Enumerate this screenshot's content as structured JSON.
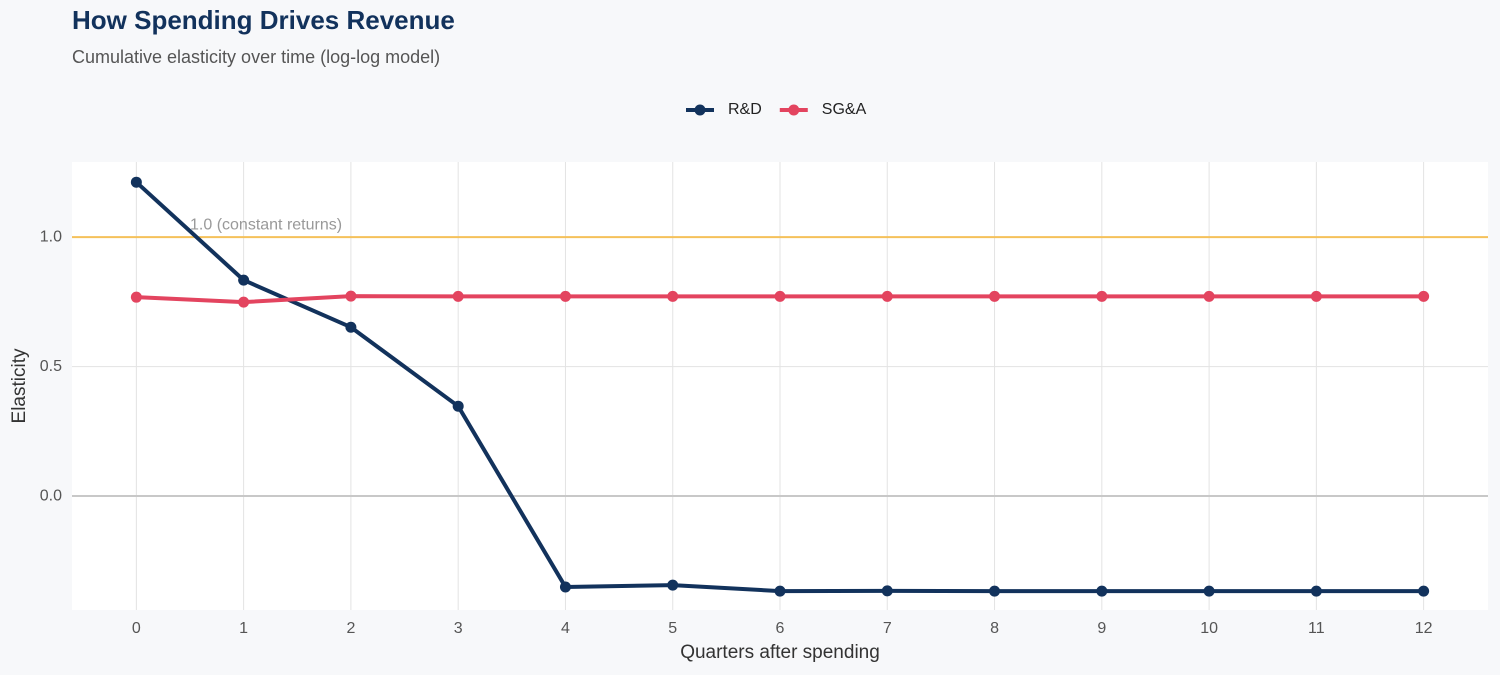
{
  "chart_data": {
    "type": "line",
    "title": "How Spending Drives Revenue",
    "subtitle": "Cumulative elasticity over time (log-log model)",
    "x_label": "Quarters after spending",
    "y_label": "Elasticity",
    "x": [
      0,
      1,
      2,
      3,
      4,
      5,
      6,
      7,
      8,
      9,
      10,
      11,
      12
    ],
    "series": [
      {
        "name": "R&D",
        "color": "#12325c",
        "values": [
          1.212,
          0.834,
          0.652,
          0.347,
          -0.351,
          -0.344,
          -0.367,
          -0.366,
          -0.367,
          -0.367,
          -0.367,
          -0.367,
          -0.367
        ]
      },
      {
        "name": "SG&A",
        "color": "#e3445f",
        "values": [
          0.768,
          0.749,
          0.772,
          0.771,
          0.771,
          0.771,
          0.771,
          0.771,
          0.771,
          0.771,
          0.771,
          0.771,
          0.771
        ]
      }
    ],
    "reference_line": {
      "value": 1.0,
      "label": "1.0 (constant returns)",
      "color": "#f5c15a"
    },
    "xlim": [
      -0.6,
      12.6
    ],
    "ylim": [
      -0.44,
      1.29
    ],
    "xticks": [
      0,
      1,
      2,
      3,
      4,
      5,
      6,
      7,
      8,
      9,
      10,
      11,
      12
    ],
    "yticks": [
      {
        "value": 0,
        "label": "0.0"
      },
      0.5,
      {
        "value": 1,
        "label": "1.0"
      }
    ],
    "grid": true,
    "legend": "top"
  }
}
